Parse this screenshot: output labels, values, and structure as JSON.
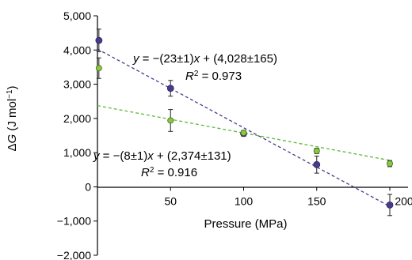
{
  "chart_data": {
    "type": "scatter",
    "xlabel": "Pressure (MPa)",
    "ylabel": "ΔG (J mol⁻¹)",
    "xlim": [
      0,
      210
    ],
    "ylim": [
      -2000,
      5000
    ],
    "x_ticks": [
      50,
      100,
      150,
      200
    ],
    "x_tick_labels": [
      "50",
      "100",
      "150",
      "200"
    ],
    "y_ticks": [
      5000,
      4000,
      3000,
      2000,
      1000,
      0,
      -1000,
      -2000
    ],
    "y_tick_labels": [
      "5,000",
      "4,000",
      "3,000",
      "2,000",
      "1,000",
      "0",
      "−1,000",
      "−2,000"
    ],
    "grid": false,
    "series": [
      {
        "color": "#4b3a8c",
        "marker_edge": "#2e2260",
        "line_color": "#4b3a8c",
        "x": [
          1,
          50,
          100,
          150,
          200
        ],
        "y": [
          4280,
          2880,
          1560,
          650,
          -530
        ],
        "err": [
          330,
          230,
          80,
          250,
          310
        ],
        "fit": {
          "slope": -23,
          "intercept": 4028
        }
      },
      {
        "color": "#8dc63f",
        "marker_edge": "#3d6b1a",
        "line_color": "#5cb83d",
        "x": [
          1,
          50,
          100,
          150,
          200
        ],
        "y": [
          3470,
          1940,
          1580,
          1050,
          680
        ],
        "err": [
          300,
          320,
          70,
          80,
          90
        ],
        "fit": {
          "slope": -8,
          "intercept": 2374
        }
      }
    ],
    "annotations": [
      {
        "line1": "y = −(23±1)x + (4,028±165)",
        "line2": "R² = 0.973"
      },
      {
        "line1": "y = −(8±1)x + (2,374±131)",
        "line2": "R² = 0.916"
      }
    ]
  }
}
